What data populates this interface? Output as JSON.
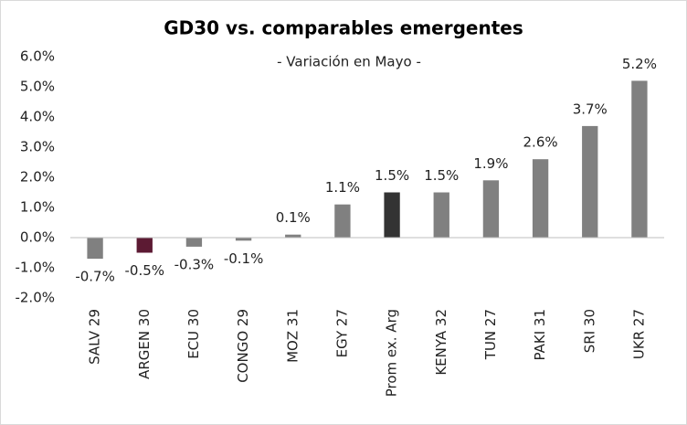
{
  "chart_data": {
    "type": "bar",
    "title": "GD30 vs. comparables emergentes",
    "subtitle": "- Variación en Mayo -",
    "categories": [
      "SALV 29",
      "ARGEN 30",
      "ECU 30",
      "CONGO 29",
      "MOZ 31",
      "EGY 27",
      "Prom ex. Arg",
      "KENYA 32",
      "TUN 27",
      "PAKI 31",
      "SRI 30",
      "UKR 27"
    ],
    "values": [
      -0.7,
      -0.5,
      -0.3,
      -0.1,
      0.1,
      1.1,
      1.5,
      1.5,
      1.9,
      2.6,
      3.7,
      5.2
    ],
    "value_labels": [
      "-0.7%",
      "-0.5%",
      "-0.3%",
      "-0.1%",
      "0.1%",
      "1.1%",
      "1.5%",
      "1.5%",
      "1.9%",
      "2.6%",
      "3.7%",
      "5.2%"
    ],
    "colors": [
      "#808080",
      "#5c1a33",
      "#808080",
      "#808080",
      "#808080",
      "#808080",
      "#333333",
      "#808080",
      "#808080",
      "#808080",
      "#808080",
      "#808080"
    ],
    "ylim": [
      -2,
      6
    ],
    "yticks": [
      {
        "value": -2,
        "label": "-2.0%"
      },
      {
        "value": -1,
        "label": "-1.0%"
      },
      {
        "value": 0,
        "label": "0.0%"
      },
      {
        "value": 1,
        "label": "1.0%"
      },
      {
        "value": 2,
        "label": "2.0%"
      },
      {
        "value": 3,
        "label": "3.0%"
      },
      {
        "value": 4,
        "label": "4.0%"
      },
      {
        "value": 5,
        "label": "5.0%"
      },
      {
        "value": 6,
        "label": "6.0%"
      }
    ],
    "grid": false
  }
}
